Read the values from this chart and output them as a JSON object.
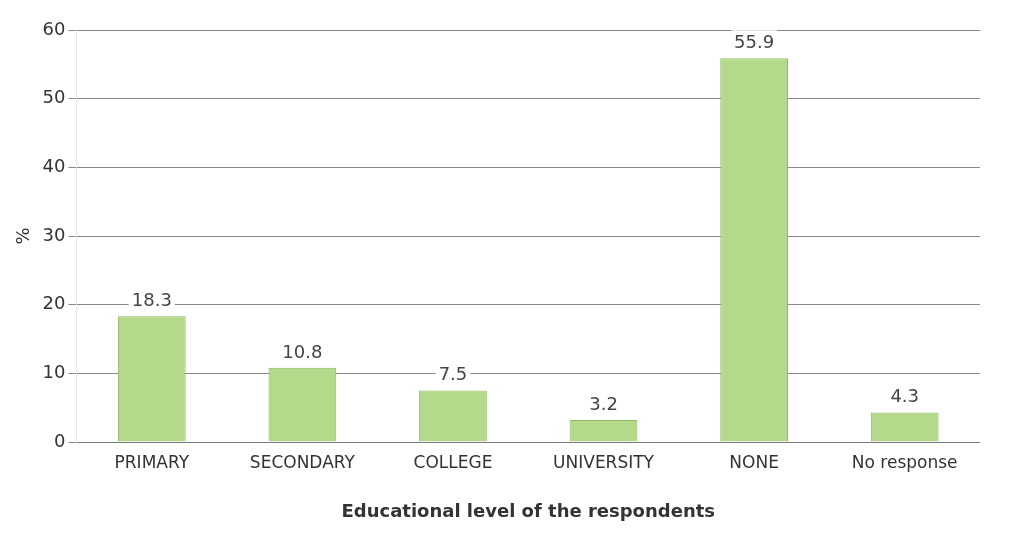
{
  "chart_data": {
    "type": "bar",
    "xlabel": "Educational level of the respondents",
    "ylabel": "%",
    "categories": [
      "PRIMARY",
      "SECONDARY",
      "COLLEGE",
      "UNIVERSITY",
      "NONE",
      "No response"
    ],
    "values": [
      18.3,
      10.8,
      7.5,
      3.2,
      55.9,
      4.3
    ],
    "color": "#b5d98a",
    "ylim": [
      0,
      60
    ],
    "yticks": [
      0,
      10,
      20,
      30,
      40,
      50,
      60
    ],
    "grid": "y",
    "data_labels": true
  }
}
